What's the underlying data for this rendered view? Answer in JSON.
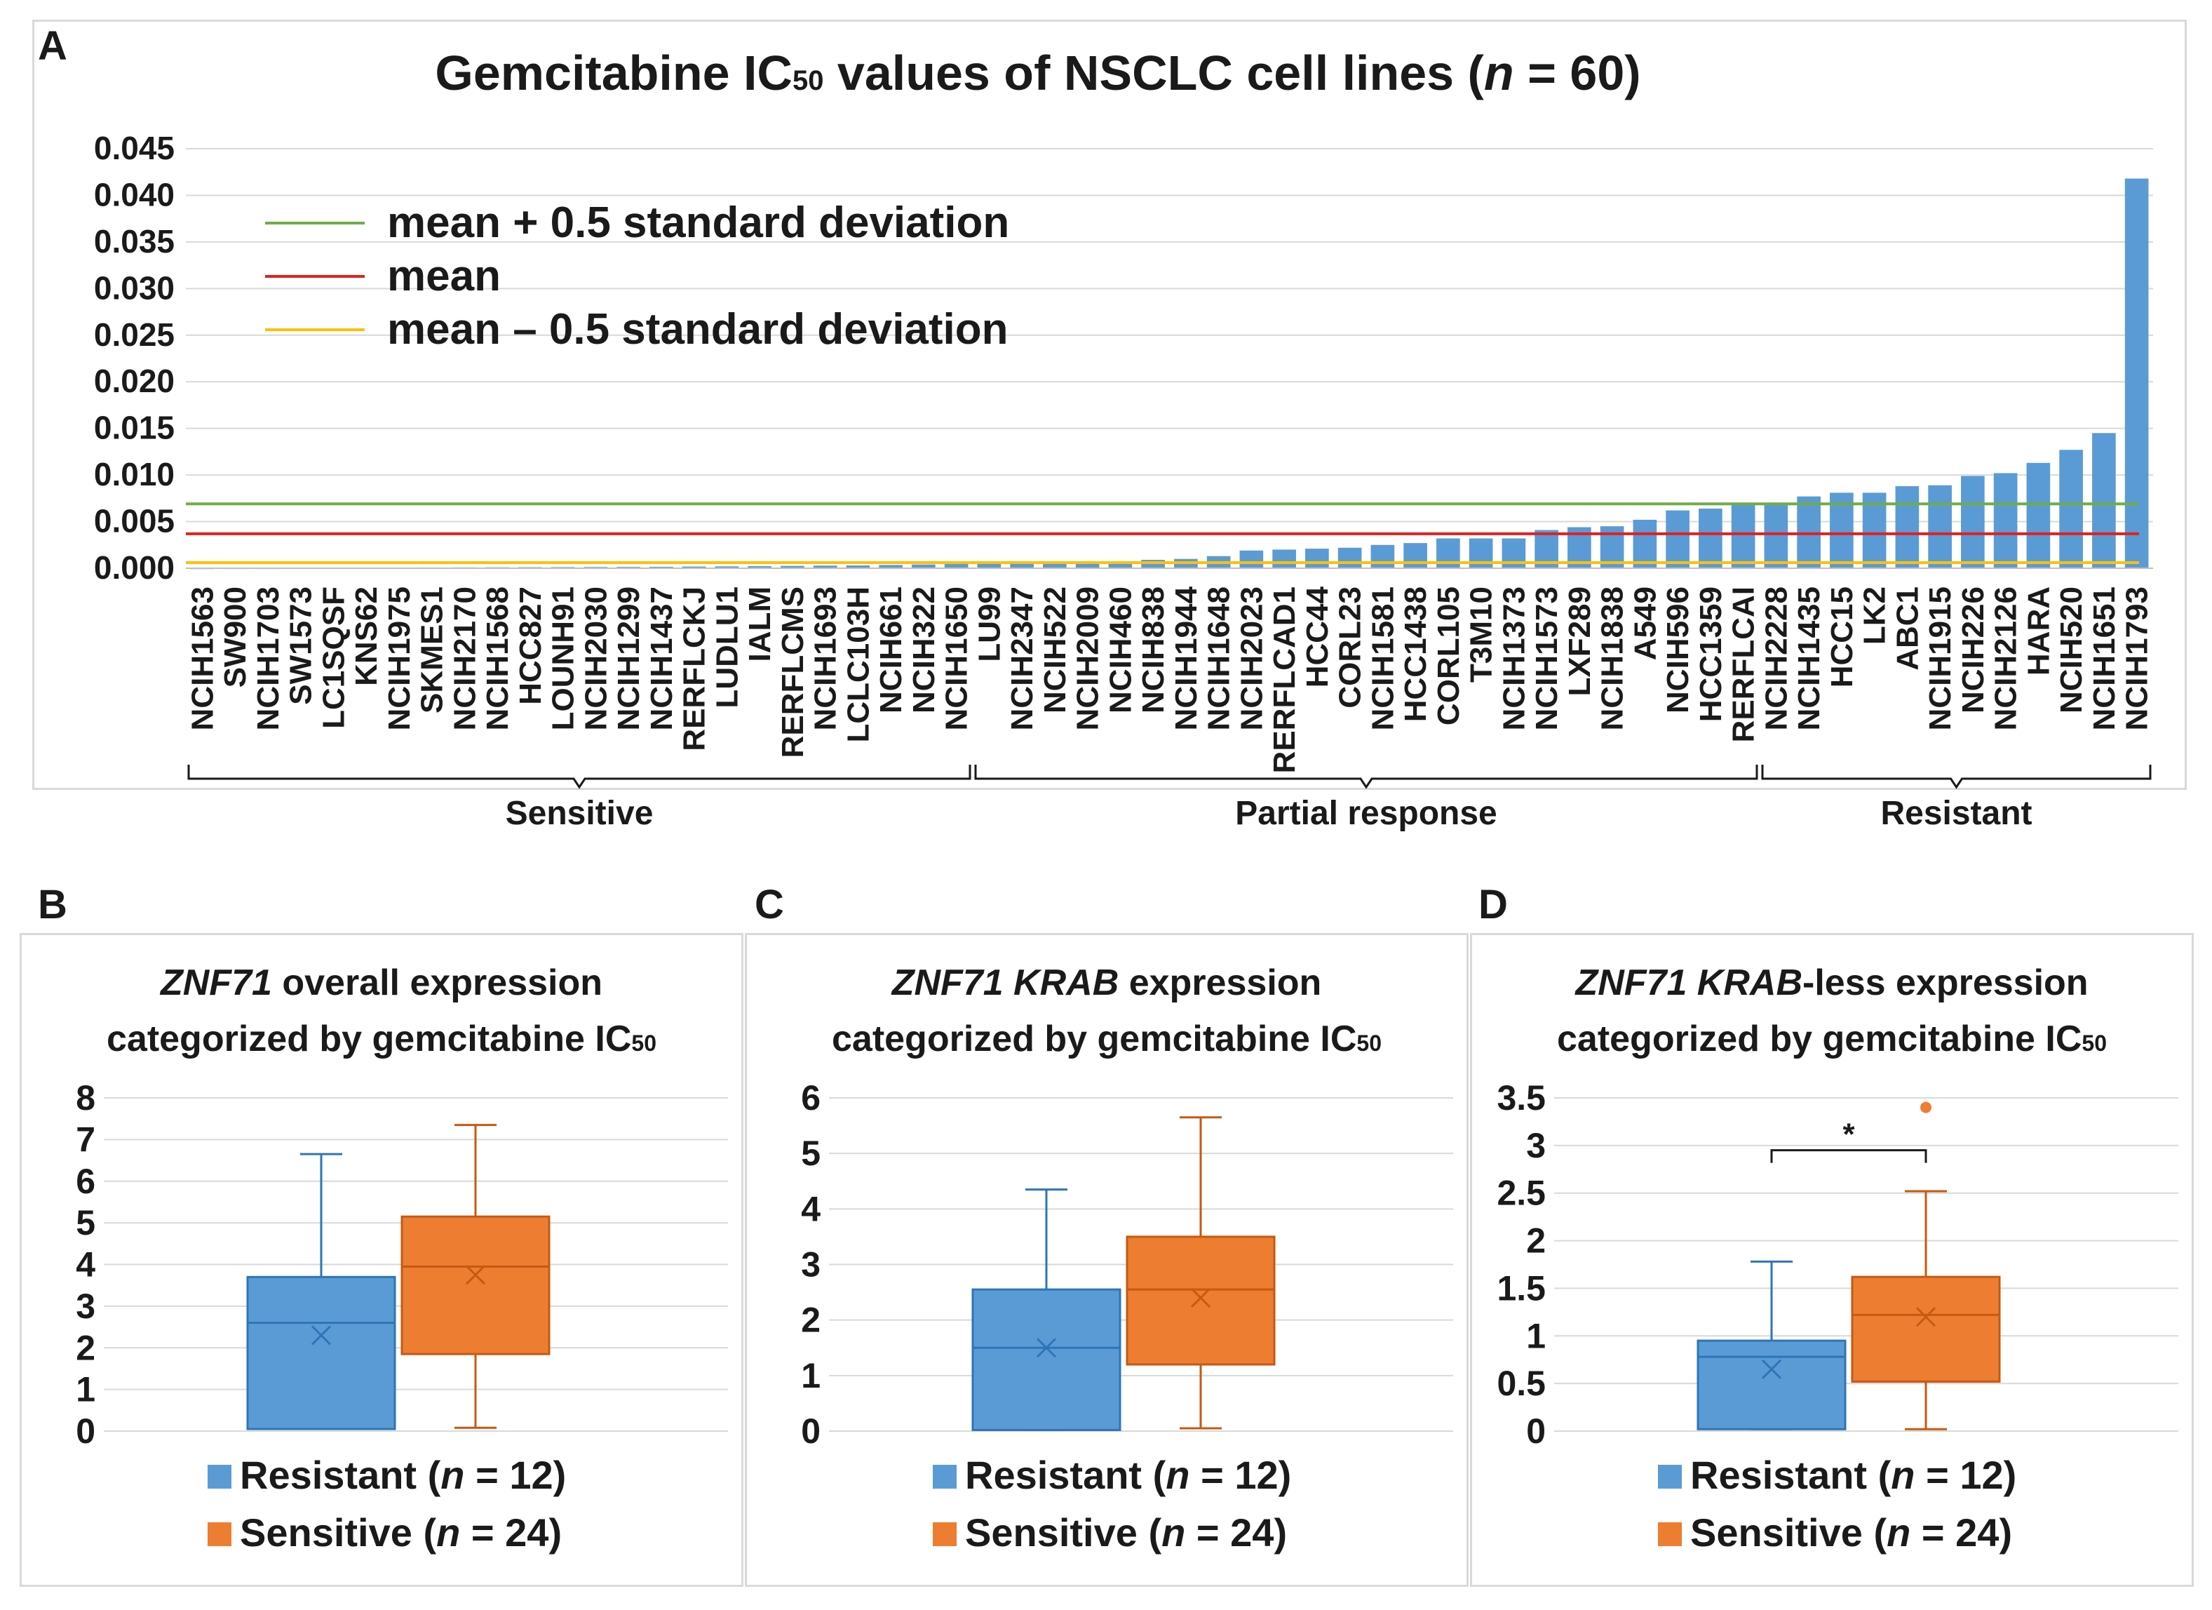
{
  "panels": {
    "A": "A",
    "B": "B",
    "C": "C",
    "D": "D"
  },
  "colors": {
    "blue_fill": "#5b9bd5",
    "blue_stroke": "#2e75b6",
    "orange_fill": "#ed7d31",
    "orange_stroke": "#c55a11",
    "green": "#70ad47",
    "red": "#e02020",
    "yellow": "#ffc000",
    "grid": "#d9d9d9",
    "text": "#1a1a1a"
  },
  "chart_data": [
    {
      "panel": "A",
      "type": "bar",
      "title": "Gemcitabine IC",
      "title_sub": "50",
      "title_suffix": " values of NSCLC cell lines (",
      "title_n": "n",
      "title_end": " = 60)",
      "ylim": [
        0,
        0.045
      ],
      "yticks": [
        "0.000",
        "0.005",
        "0.010",
        "0.015",
        "0.020",
        "0.025",
        "0.030",
        "0.035",
        "0.040",
        "0.045"
      ],
      "ytick_values": [
        0,
        0.005,
        0.01,
        0.015,
        0.02,
        0.025,
        0.03,
        0.035,
        0.04,
        0.045
      ],
      "categories": [
        "NCIH1563",
        "SW900",
        "NCIH1703",
        "SW1573",
        "LC1SQSF",
        "KNS62",
        "NCIH1975",
        "SKMES1",
        "NCIH2170",
        "NCIH1568",
        "HCC827",
        "LOUNH91",
        "NCIH2030",
        "NCIH1299",
        "NCIH1437",
        "RERFLCKJ",
        "LUDLU1",
        "IALM",
        "RERFLCMS",
        "NCIH1693",
        "LCLC103H",
        "NCIH661",
        "NCIH322",
        "NCIH1650",
        "LU99",
        "NCIH2347",
        "NCIH522",
        "NCIH2009",
        "NCIH460",
        "NCIH838",
        "NCIH1944",
        "NCIH1648",
        "NCIH2023",
        "RERFLCAD1",
        "HCC44",
        "CORL23",
        "NCIH1581",
        "HCC1438",
        "CORL105",
        "T3M10",
        "NCIH1373",
        "NCIH1573",
        "LXF289",
        "NCIH1838",
        "A549",
        "NCIH596",
        "HCC1359",
        "RERFLCAI",
        "NCIH2228",
        "NCIH1435",
        "HCC15",
        "LK2",
        "ABC1",
        "NCIH1915",
        "NCIH226",
        "NCIH2126",
        "HARA",
        "NCIH520",
        "NCIH1651",
        "NCIH1793"
      ],
      "values": [
        2e-05,
        3e-05,
        3e-05,
        4e-05,
        5e-05,
        6e-05,
        7e-05,
        8e-05,
        9e-05,
        0.0001,
        0.00011,
        0.00012,
        0.00013,
        0.00014,
        0.00015,
        0.00018,
        0.0002,
        0.00022,
        0.00025,
        0.00028,
        0.0003,
        0.00035,
        0.0004,
        0.00045,
        0.0005,
        0.00055,
        0.0006,
        0.0007,
        0.00075,
        0.0009,
        0.001,
        0.0013,
        0.0019,
        0.002,
        0.0021,
        0.0022,
        0.0025,
        0.0027,
        0.0032,
        0.0032,
        0.0032,
        0.0041,
        0.0044,
        0.0045,
        0.0052,
        0.0062,
        0.0064,
        0.0068,
        0.0069,
        0.0077,
        0.0081,
        0.0081,
        0.0088,
        0.0089,
        0.0099,
        0.0102,
        0.0113,
        0.0127,
        0.0145,
        0.0418
      ],
      "lines": [
        {
          "name": "mean + 0.5 standard deviation",
          "value": 0.0069,
          "color": "#70ad47"
        },
        {
          "name": "mean",
          "value": 0.0037,
          "color": "#e02020"
        },
        {
          "name": "mean – 0.5 standard deviation",
          "value": 0.0006,
          "color": "#ffc000"
        }
      ],
      "groups": [
        {
          "label": "Sensitive",
          "from": 0,
          "to": 23
        },
        {
          "label": "Partial response",
          "from": 24,
          "to": 47
        },
        {
          "label": "Resistant",
          "from": 48,
          "to": 59
        }
      ]
    },
    {
      "panel": "B",
      "type": "box",
      "title_italic": "ZNF71",
      "title_rest": " overall expression",
      "title_line2": "categorized by gemcitabine IC",
      "title_sub": "50",
      "ylim": [
        0,
        8
      ],
      "yticks": [
        "0",
        "1",
        "2",
        "3",
        "4",
        "5",
        "6",
        "7",
        "8"
      ],
      "ytick_values": [
        0,
        1,
        2,
        3,
        4,
        5,
        6,
        7,
        8
      ],
      "series": [
        {
          "name": "Resistant",
          "n_label": "n",
          "n_text": " = 12",
          "min": 0.05,
          "q1": 0.05,
          "median": 2.6,
          "q3": 3.7,
          "max": 6.65,
          "mean": 2.3,
          "outliers": []
        },
        {
          "name": "Sensitive",
          "n_label": "n",
          "n_text": " = 24",
          "min": 0.08,
          "q1": 1.85,
          "median": 3.95,
          "q3": 5.15,
          "max": 7.35,
          "mean": 3.75,
          "outliers": []
        }
      ],
      "significance": ""
    },
    {
      "panel": "C",
      "type": "box",
      "title_italic": "ZNF71 KRAB",
      "title_rest": " expression",
      "title_line2": "categorized by gemcitabine IC",
      "title_sub": "50",
      "ylim": [
        0,
        6
      ],
      "yticks": [
        "0",
        "1",
        "2",
        "3",
        "4",
        "5",
        "6"
      ],
      "ytick_values": [
        0,
        1,
        2,
        3,
        4,
        5,
        6
      ],
      "series": [
        {
          "name": "Resistant",
          "n_label": "n",
          "n_text": " = 12",
          "min": 0.02,
          "q1": 0.02,
          "median": 1.5,
          "q3": 2.55,
          "max": 4.35,
          "mean": 1.5,
          "outliers": []
        },
        {
          "name": "Sensitive",
          "n_label": "n",
          "n_text": " = 24",
          "min": 0.05,
          "q1": 1.2,
          "median": 2.55,
          "q3": 3.5,
          "max": 5.65,
          "mean": 2.4,
          "outliers": []
        }
      ],
      "significance": ""
    },
    {
      "panel": "D",
      "type": "box",
      "title_italic": "ZNF71 KRAB",
      "title_rest": "-less expression",
      "title_line2": "categorized by gemcitabine IC",
      "title_sub": "50",
      "ylim": [
        0,
        3.5
      ],
      "yticks": [
        "0",
        "0.5",
        "1",
        "1.5",
        "2",
        "2.5",
        "3",
        "3.5"
      ],
      "ytick_values": [
        0,
        0.5,
        1,
        1.5,
        2,
        2.5,
        3,
        3.5
      ],
      "series": [
        {
          "name": "Resistant",
          "n_label": "n",
          "n_text": " = 12",
          "min": 0.02,
          "q1": 0.02,
          "median": 0.78,
          "q3": 0.95,
          "max": 1.78,
          "mean": 0.65,
          "outliers": []
        },
        {
          "name": "Sensitive",
          "n_label": "n",
          "n_text": " = 24",
          "min": 0.02,
          "q1": 0.52,
          "median": 1.22,
          "q3": 1.62,
          "max": 2.52,
          "mean": 1.2,
          "outliers": [
            3.4
          ]
        }
      ],
      "significance": "*"
    }
  ]
}
